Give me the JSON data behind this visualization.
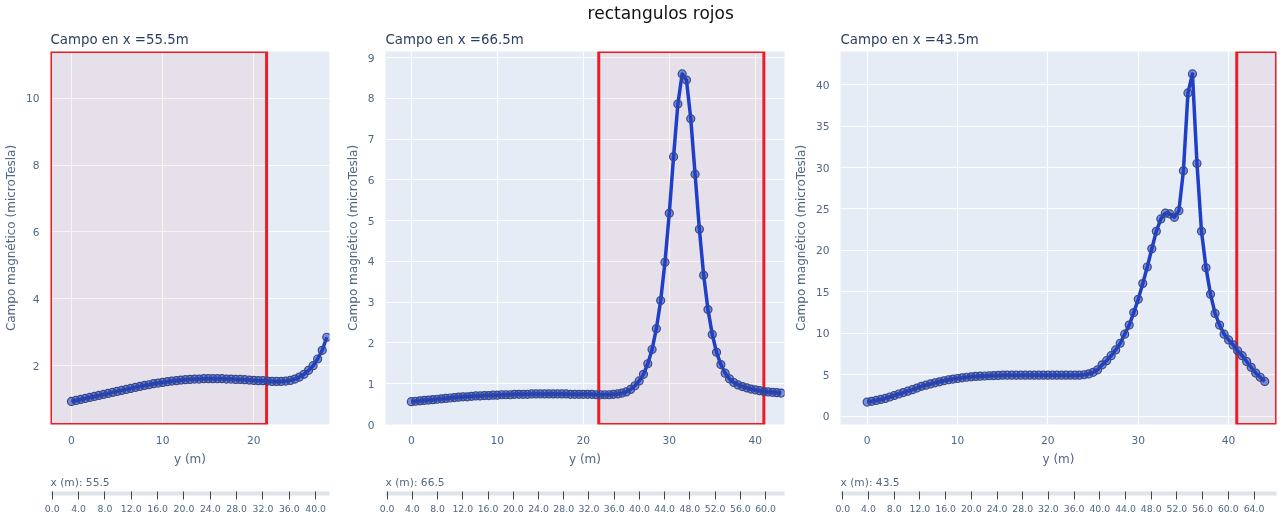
{
  "chart_data": [
    {
      "type": "other",
      "title": "rectangulos rojos"
    },
    {
      "type": "line",
      "title": "Campo en x =55.5m",
      "xlabel": "y (m)",
      "ylabel": "Campo magnético (microTesla)",
      "xlim": [
        -2.3,
        28.3
      ],
      "ylim": [
        0.24,
        11.4
      ],
      "xticks": [
        0,
        10,
        20
      ],
      "yticks": [
        2,
        4,
        6,
        8,
        10
      ],
      "grid": true,
      "marker": "circle",
      "series": [
        {
          "color": "#1f3fc8",
          "x": [
            0,
            0.5,
            1,
            1.5,
            2,
            2.5,
            3,
            3.5,
            4,
            4.5,
            5,
            5.5,
            6,
            6.5,
            7,
            7.5,
            8,
            8.5,
            9,
            9.5,
            10,
            10.5,
            11,
            11.5,
            12,
            12.5,
            13,
            13.5,
            14,
            14.5,
            15,
            15.5,
            16,
            16.5,
            17,
            17.5,
            18,
            18.5,
            19,
            19.5,
            20,
            20.5,
            21,
            21.5,
            22,
            22.5,
            23,
            23.5,
            24,
            24.5,
            25,
            25.5,
            26,
            26.5,
            27,
            27.5,
            28
          ],
          "values": [
            0.93,
            0.96,
            0.99,
            1.02,
            1.05,
            1.08,
            1.11,
            1.14,
            1.17,
            1.2,
            1.23,
            1.26,
            1.29,
            1.32,
            1.35,
            1.38,
            1.41,
            1.43,
            1.46,
            1.48,
            1.5,
            1.52,
            1.54,
            1.55,
            1.57,
            1.58,
            1.59,
            1.6,
            1.6,
            1.61,
            1.61,
            1.61,
            1.61,
            1.61,
            1.6,
            1.6,
            1.59,
            1.59,
            1.58,
            1.57,
            1.56,
            1.55,
            1.55,
            1.54,
            1.53,
            1.53,
            1.53,
            1.54,
            1.56,
            1.6,
            1.66,
            1.74,
            1.86,
            2.0,
            2.2,
            2.46,
            2.85
          ]
        }
      ],
      "bands": [
        {
          "axis": "x",
          "from": -2.3,
          "to": 21.4,
          "color": "#ee1c25"
        }
      ],
      "annotations": [
        "x (m): 55.5"
      ],
      "x2lim": [
        -0.26,
        42.1
      ],
      "x2ticks": [
        {
          "value": 0,
          "label": "0.0"
        },
        {
          "value": 4,
          "label": "4.0"
        },
        {
          "value": 8,
          "label": "8.0"
        },
        {
          "value": 12,
          "label": "12.0"
        },
        {
          "value": 16,
          "label": "16.0"
        },
        {
          "value": 20,
          "label": "20.0"
        },
        {
          "value": 24,
          "label": "24.0"
        },
        {
          "value": 28,
          "label": "28.0"
        },
        {
          "value": 32,
          "label": "32.0"
        },
        {
          "value": 36,
          "label": "36.0"
        },
        {
          "value": 40,
          "label": "40.0"
        }
      ]
    },
    {
      "type": "line",
      "title": "Campo en x =66.5m",
      "xlabel": "y (m)",
      "ylabel": "Campo magnético (microTesla)",
      "xlim": [
        -3.0,
        43.4
      ],
      "ylim": [
        0,
        9.15
      ],
      "xticks": [
        0,
        10,
        20,
        30,
        40
      ],
      "yticks": [
        0,
        1,
        2,
        3,
        4,
        5,
        6,
        7,
        8,
        9
      ],
      "grid": true,
      "marker": "circle",
      "series": [
        {
          "color": "#1f3fc8",
          "x": [
            0,
            0.5,
            1,
            1.5,
            2,
            2.5,
            3,
            3.5,
            4,
            4.5,
            5,
            5.5,
            6,
            6.5,
            7,
            7.5,
            8,
            8.5,
            9,
            9.5,
            10,
            10.5,
            11,
            11.5,
            12,
            12.5,
            13,
            13.5,
            14,
            14.5,
            15,
            15.5,
            16,
            16.5,
            17,
            17.5,
            18,
            18.5,
            19,
            19.5,
            20,
            20.5,
            21,
            21.5,
            22,
            22.5,
            23,
            23.5,
            24,
            24.5,
            25,
            25.5,
            26,
            26.5,
            27,
            27.5,
            28,
            28.5,
            29,
            29.5,
            30,
            30.5,
            31,
            31.5,
            32,
            32.5,
            33,
            33.5,
            34,
            34.5,
            35,
            35.5,
            36,
            36.5,
            37,
            37.5,
            38,
            38.5,
            39,
            39.5,
            40,
            40.5,
            41,
            41.5,
            42,
            42.5,
            43
          ],
          "values": [
            0.56,
            0.57,
            0.58,
            0.59,
            0.6,
            0.61,
            0.62,
            0.63,
            0.64,
            0.65,
            0.66,
            0.67,
            0.68,
            0.68,
            0.69,
            0.7,
            0.7,
            0.71,
            0.71,
            0.72,
            0.72,
            0.73,
            0.73,
            0.73,
            0.74,
            0.74,
            0.74,
            0.74,
            0.75,
            0.75,
            0.75,
            0.75,
            0.75,
            0.75,
            0.75,
            0.75,
            0.75,
            0.74,
            0.74,
            0.74,
            0.74,
            0.74,
            0.74,
            0.73,
            0.73,
            0.73,
            0.73,
            0.74,
            0.75,
            0.77,
            0.8,
            0.86,
            0.95,
            1.07,
            1.23,
            1.49,
            1.84,
            2.35,
            3.04,
            3.98,
            5.18,
            6.57,
            7.86,
            8.6,
            8.45,
            7.5,
            6.14,
            4.79,
            3.66,
            2.82,
            2.21,
            1.77,
            1.47,
            1.26,
            1.12,
            1.03,
            0.97,
            0.93,
            0.9,
            0.87,
            0.85,
            0.83,
            0.81,
            0.8,
            0.79,
            0.78,
            0.77
          ]
        }
      ],
      "bands": [
        {
          "axis": "x",
          "from": 21.8,
          "to": 41.0,
          "color": "#ee1c25"
        }
      ],
      "annotations": [
        "x (m): 66.5"
      ],
      "x2lim": [
        -0.26,
        63.0
      ],
      "x2ticks": [
        {
          "value": 0,
          "label": "0.0"
        },
        {
          "value": 4,
          "label": "4.0"
        },
        {
          "value": 8,
          "label": "8.0"
        },
        {
          "value": 12,
          "label": "12.0"
        },
        {
          "value": 16,
          "label": "16.0"
        },
        {
          "value": 20,
          "label": "20.0"
        },
        {
          "value": 24,
          "label": "24.0"
        },
        {
          "value": 28,
          "label": "28.0"
        },
        {
          "value": 32,
          "label": "32.0"
        },
        {
          "value": 36,
          "label": "36.0"
        },
        {
          "value": 40,
          "label": "40.0"
        },
        {
          "value": 44,
          "label": "44.0"
        },
        {
          "value": 48,
          "label": "48.0"
        },
        {
          "value": 52,
          "label": "52.0"
        },
        {
          "value": 56,
          "label": "56.0"
        },
        {
          "value": 60,
          "label": "60.0"
        }
      ]
    },
    {
      "type": "line",
      "title": "Campo en x =43.5m",
      "xlabel": "y (m)",
      "ylabel": "Campo magnético (microTesla)",
      "xlim": [
        -2.95,
        45.3
      ],
      "ylim": [
        -1,
        44
      ],
      "xticks": [
        0,
        10,
        20,
        30,
        40
      ],
      "yticks": [
        0,
        5,
        10,
        15,
        20,
        25,
        30,
        35,
        40
      ],
      "grid": true,
      "marker": "circle",
      "series": [
        {
          "color": "#1f3fc8",
          "x": [
            0,
            0.5,
            1,
            1.5,
            2,
            2.5,
            3,
            3.5,
            4,
            4.5,
            5,
            5.5,
            6,
            6.5,
            7,
            7.5,
            8,
            8.5,
            9,
            9.5,
            10,
            10.5,
            11,
            11.5,
            12,
            12.5,
            13,
            13.5,
            14,
            14.5,
            15,
            15.5,
            16,
            16.5,
            17,
            17.5,
            18,
            18.5,
            19,
            19.5,
            20,
            20.5,
            21,
            21.5,
            22,
            22.5,
            23,
            23.5,
            24,
            24.5,
            25,
            25.5,
            26,
            26.5,
            27,
            27.5,
            28,
            28.5,
            29,
            29.5,
            30,
            30.5,
            31,
            31.5,
            32,
            32.5,
            33,
            33.5,
            34,
            34.5,
            35,
            35.5,
            36,
            36.5,
            37,
            37.5,
            38,
            38.5,
            39,
            39.5,
            40,
            40.5,
            41,
            41.5,
            42,
            42.5,
            43,
            43.5,
            44
          ],
          "values": [
            1.7,
            1.8,
            1.9,
            2.02,
            2.15,
            2.32,
            2.5,
            2.68,
            2.85,
            3.02,
            3.2,
            3.4,
            3.6,
            3.75,
            3.9,
            4.03,
            4.15,
            4.28,
            4.4,
            4.48,
            4.55,
            4.63,
            4.7,
            4.75,
            4.8,
            4.83,
            4.85,
            4.88,
            4.9,
            4.92,
            4.95,
            4.95,
            4.95,
            4.95,
            4.95,
            4.95,
            4.95,
            4.95,
            4.95,
            4.95,
            4.95,
            4.95,
            4.95,
            4.95,
            4.95,
            4.95,
            4.95,
            4.95,
            5.0,
            5.1,
            5.3,
            5.6,
            6.2,
            6.7,
            7.3,
            8.0,
            8.8,
            9.9,
            11.0,
            12.5,
            14.1,
            16.0,
            18.0,
            20.2,
            22.3,
            23.8,
            24.5,
            24.4,
            24.0,
            24.8,
            29.6,
            39.0,
            41.3,
            30.5,
            22.3,
            17.9,
            14.7,
            12.4,
            11.0,
            9.9,
            9.2,
            8.6,
            7.9,
            7.3,
            6.6,
            5.9,
            5.2,
            4.7,
            4.2
          ]
        }
      ],
      "bands": [
        {
          "axis": "x",
          "from": 40.9,
          "to": 45.3,
          "color": "#ee1c25"
        }
      ],
      "annotations": [
        "x (m): 43.5"
      ],
      "x2lim": [
        -0.36,
        67.5
      ],
      "x2ticks": [
        {
          "value": 0,
          "label": "0.0"
        },
        {
          "value": 4,
          "label": "4.0"
        },
        {
          "value": 8,
          "label": "8.0"
        },
        {
          "value": 12,
          "label": "12.0"
        },
        {
          "value": 16,
          "label": "16.0"
        },
        {
          "value": 20,
          "label": "20.0"
        },
        {
          "value": 24,
          "label": "24.0"
        },
        {
          "value": 28,
          "label": "28.0"
        },
        {
          "value": 32,
          "label": "32.0"
        },
        {
          "value": 36,
          "label": "36.0"
        },
        {
          "value": 40,
          "label": "40.0"
        },
        {
          "value": 44,
          "label": "44.0"
        },
        {
          "value": 48,
          "label": "48.0"
        },
        {
          "value": 52,
          "label": "52.0"
        },
        {
          "value": 56,
          "label": "56.0"
        },
        {
          "value": 60,
          "label": "60.0"
        },
        {
          "value": 64,
          "label": "64.0"
        }
      ]
    }
  ]
}
